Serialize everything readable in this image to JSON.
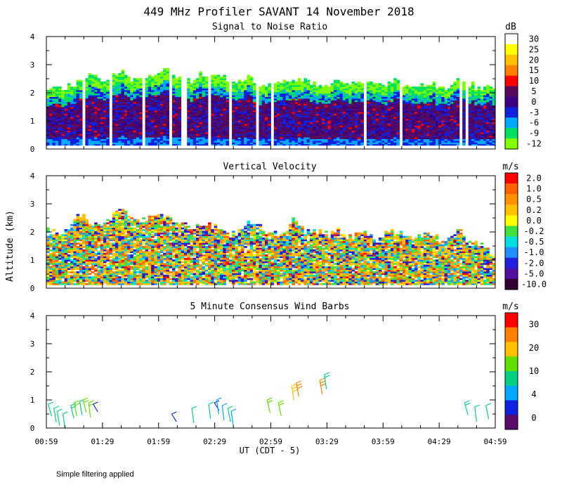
{
  "title": "449 MHz Profiler SAVANT 14 November 2018",
  "ylabel": "Altitude (km)",
  "xlabel": "UT  (CDT - 5)",
  "footnote": "Simple filtering applied",
  "x_tick_labels": [
    "00:59",
    "01:29",
    "01:59",
    "02:29",
    "02:59",
    "03:29",
    "03:59",
    "04:29",
    "04:59"
  ],
  "y_tick_labels": [
    "0",
    "1",
    "2",
    "3",
    "4"
  ],
  "chart_data": [
    {
      "type": "heatmap",
      "title": "Signal to Noise Ratio",
      "unit": "dB",
      "x_range_hours": [
        0.983,
        4.983
      ],
      "ylim": [
        0,
        4
      ],
      "colorbar": {
        "labels": [
          "30",
          "25",
          "20",
          "15",
          "10",
          "5",
          "0",
          "-3",
          "-6",
          "-9",
          "-12"
        ],
        "colors": [
          "#ffffff",
          "#ffff00",
          "#ffc000",
          "#ff8000",
          "#ff0000",
          "#5a0a5a",
          "#3a0080",
          "#1020e0",
          "#00a8ff",
          "#00e060",
          "#80ff00"
        ]
      },
      "column_tops_km": [
        2.2,
        2.1,
        2.2,
        2.3,
        2.5,
        2.6,
        2.4,
        2.5,
        2.8,
        2.4,
        2.6,
        2.5,
        2.7,
        2.9,
        2.6,
        2.5,
        2.4,
        2.7,
        2.6,
        2.5,
        2.4,
        2.4,
        2.5,
        2.3,
        2.2,
        2.4,
        2.3,
        2.4,
        2.5,
        2.3,
        2.2,
        2.3,
        2.4,
        2.3,
        2.3,
        2.4,
        2.3,
        2.2,
        2.4,
        2.3,
        2.2,
        2.2,
        2.3,
        2.1,
        2.2,
        2.4,
        2.3,
        2.2,
        2.2,
        2.1
      ]
    },
    {
      "type": "heatmap",
      "title": "Vertical Velocity",
      "unit": "m/s",
      "x_range_hours": [
        0.983,
        4.983
      ],
      "ylim": [
        0,
        4
      ],
      "colorbar": {
        "labels": [
          "2.0",
          "1.0",
          "0.5",
          "0.2",
          "0.0",
          "-0.2",
          "-0.5",
          "-1.0",
          "-2.0",
          "-5.0",
          "-10.0"
        ],
        "colors": [
          "#ff0000",
          "#ff6000",
          "#ff9000",
          "#ffc000",
          "#ffff00",
          "#40e040",
          "#00e0e0",
          "#2090ff",
          "#2020e0",
          "#5010a0",
          "#300030"
        ]
      },
      "column_tops_km": [
        2.0,
        1.9,
        2.0,
        2.4,
        2.7,
        2.2,
        2.3,
        2.5,
        2.8,
        2.6,
        2.4,
        2.5,
        2.6,
        2.5,
        2.3,
        2.2,
        2.0,
        2.3,
        2.2,
        2.0,
        1.9,
        2.0,
        2.4,
        2.2,
        2.0,
        1.9,
        2.0,
        2.5,
        2.1,
        1.9,
        2.0,
        1.9,
        2.1,
        1.8,
        1.9,
        2.0,
        1.8,
        1.9,
        2.0,
        1.9,
        1.8,
        1.8,
        2.0,
        1.7,
        1.8,
        2.1,
        1.8,
        1.6,
        1.4,
        1.2
      ]
    },
    {
      "type": "scatter",
      "title": "5 Minute Consensus Wind Barbs",
      "unit": "m/s",
      "x_range_hours": [
        0.983,
        4.983
      ],
      "ylim": [
        0,
        4
      ],
      "colorbar": {
        "labels": [
          "30",
          "20",
          "10",
          "4",
          "0"
        ],
        "colors": [
          "#ff0000",
          "#ff8000",
          "#ffc000",
          "#60e000",
          "#00d080",
          "#00a8ff",
          "#1020e0",
          "#5a0a6a"
        ]
      },
      "barbs": [
        {
          "t": 1.0,
          "alt": 0.85,
          "speed": 8
        },
        {
          "t": 1.05,
          "alt": 0.7,
          "speed": 7
        },
        {
          "t": 1.08,
          "alt": 0.6,
          "speed": 8
        },
        {
          "t": 1.13,
          "alt": 0.5,
          "speed": 6
        },
        {
          "t": 1.2,
          "alt": 0.8,
          "speed": 9
        },
        {
          "t": 1.23,
          "alt": 0.9,
          "speed": 10
        },
        {
          "t": 1.28,
          "alt": 0.95,
          "speed": 8
        },
        {
          "t": 1.31,
          "alt": 1.0,
          "speed": 10
        },
        {
          "t": 1.36,
          "alt": 0.9,
          "speed": 12
        },
        {
          "t": 1.4,
          "alt": 0.85,
          "speed": 3
        },
        {
          "t": 2.1,
          "alt": 0.5,
          "speed": 3
        },
        {
          "t": 2.28,
          "alt": 0.7,
          "speed": 7
        },
        {
          "t": 2.43,
          "alt": 0.85,
          "speed": 7
        },
        {
          "t": 2.48,
          "alt": 0.9,
          "speed": 2
        },
        {
          "t": 2.5,
          "alt": 1.0,
          "speed": 4
        },
        {
          "t": 2.55,
          "alt": 0.8,
          "speed": 5
        },
        {
          "t": 2.6,
          "alt": 0.7,
          "speed": 6
        },
        {
          "t": 2.63,
          "alt": 0.6,
          "speed": 5
        },
        {
          "t": 2.95,
          "alt": 1.0,
          "speed": 10
        },
        {
          "t": 3.05,
          "alt": 0.9,
          "speed": 11
        },
        {
          "t": 3.17,
          "alt": 1.5,
          "speed": 17
        },
        {
          "t": 3.21,
          "alt": 1.6,
          "speed": 18
        },
        {
          "t": 3.42,
          "alt": 1.7,
          "speed": 19
        },
        {
          "t": 3.46,
          "alt": 1.9,
          "speed": 9
        },
        {
          "t": 4.71,
          "alt": 0.9,
          "speed": 9
        },
        {
          "t": 4.8,
          "alt": 0.75,
          "speed": 8
        },
        {
          "t": 4.9,
          "alt": 0.8,
          "speed": 7
        }
      ]
    }
  ]
}
